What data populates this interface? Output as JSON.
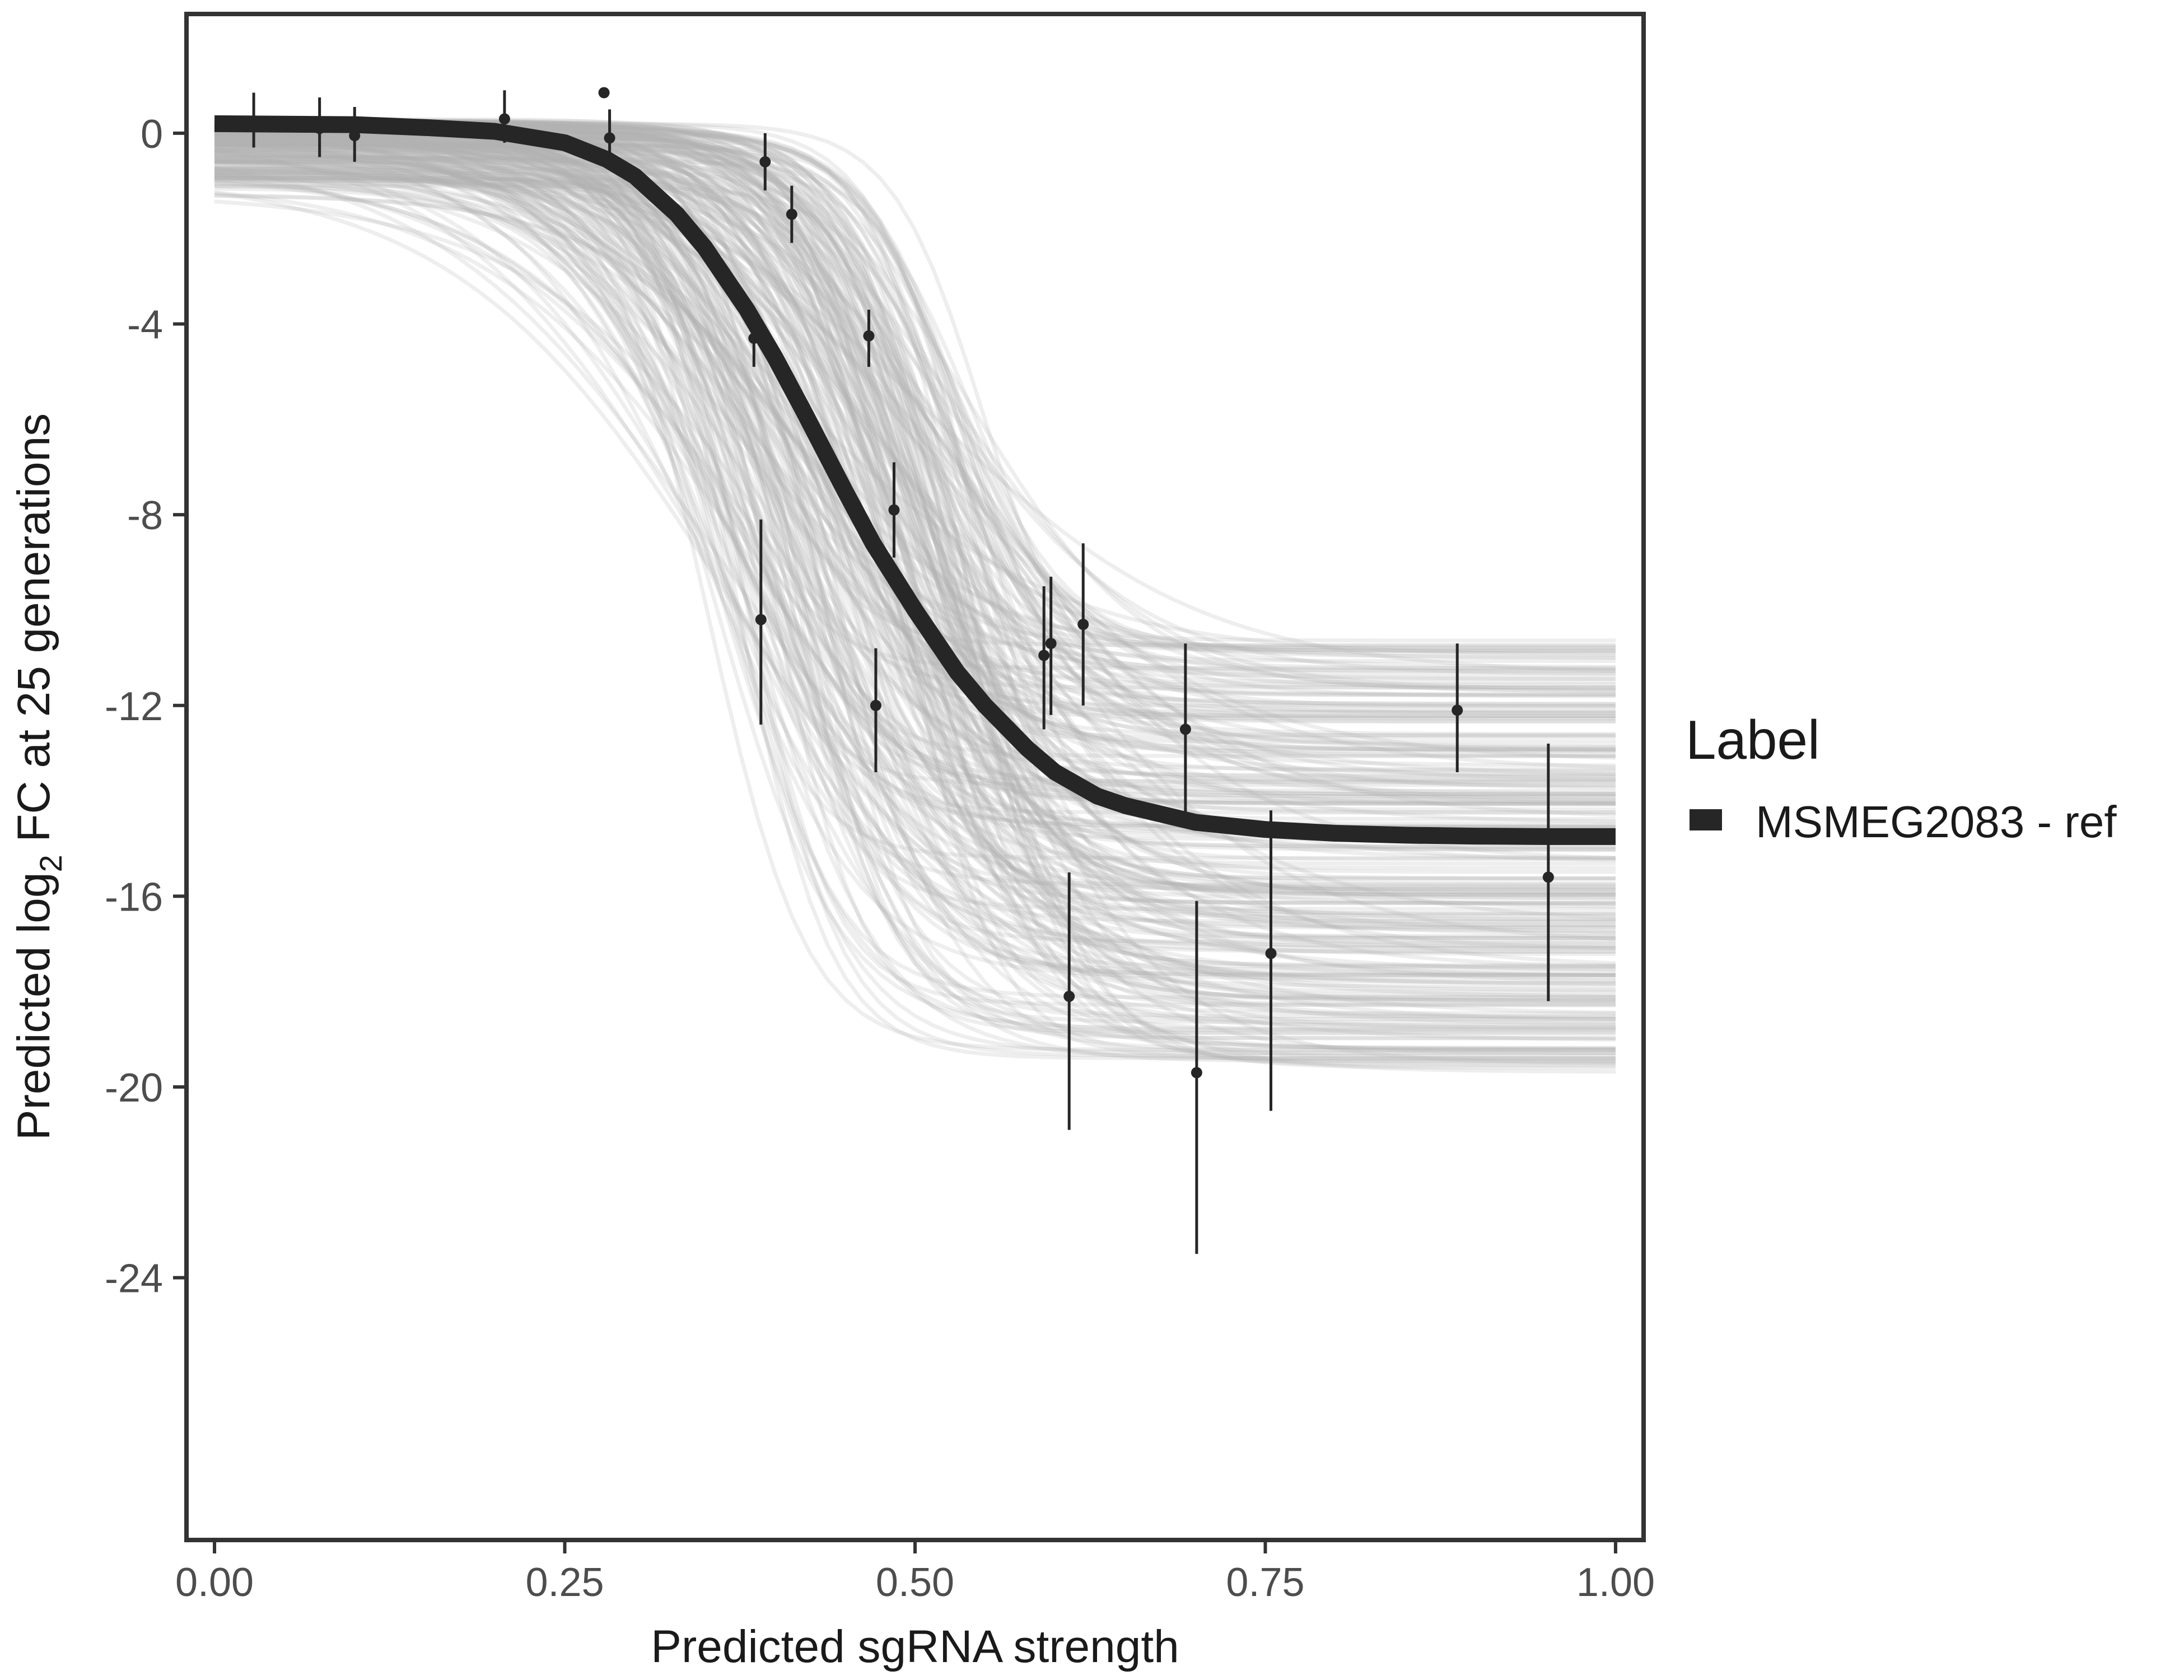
{
  "chart_data": {
    "type": "line",
    "title": "",
    "xlabel": "Predicted sgRNA strength",
    "ylabel_parts": [
      "Predicted  log",
      "2",
      " FC at 25 generations"
    ],
    "xlim": [
      -0.02,
      1.02
    ],
    "ylim": [
      -29.5,
      2.5
    ],
    "x_ticks": [
      {
        "value": 0.0,
        "label": "0.00"
      },
      {
        "value": 0.25,
        "label": "0.25"
      },
      {
        "value": 0.5,
        "label": "0.50"
      },
      {
        "value": 0.75,
        "label": "0.75"
      },
      {
        "value": 1.0,
        "label": "1.00"
      }
    ],
    "y_ticks": [
      {
        "value": 0,
        "label": "0"
      },
      {
        "value": -4,
        "label": "-4"
      },
      {
        "value": -8,
        "label": "-8"
      },
      {
        "value": -12,
        "label": "-12"
      },
      {
        "value": -16,
        "label": "-16"
      },
      {
        "value": -20,
        "label": "-20"
      },
      {
        "value": -24,
        "label": "-24"
      }
    ],
    "grid": false,
    "legend": {
      "title": "Label",
      "position": "right",
      "entries": [
        {
          "label": "MSMEG2083 - ref",
          "color": "#262626"
        }
      ]
    },
    "fit_curve": {
      "name": "MSMEG2083 - ref",
      "color": "#262626",
      "x": [
        0.0,
        0.05,
        0.1,
        0.15,
        0.2,
        0.25,
        0.28,
        0.3,
        0.33,
        0.35,
        0.38,
        0.4,
        0.42,
        0.45,
        0.47,
        0.5,
        0.53,
        0.55,
        0.58,
        0.6,
        0.63,
        0.65,
        0.7,
        0.75,
        0.8,
        0.85,
        0.9,
        0.95,
        1.0
      ],
      "y": [
        0.2,
        0.19,
        0.18,
        0.12,
        0.04,
        -0.2,
        -0.55,
        -0.9,
        -1.7,
        -2.4,
        -3.7,
        -4.7,
        -5.8,
        -7.5,
        -8.6,
        -10.0,
        -11.3,
        -12.0,
        -12.9,
        -13.4,
        -13.9,
        -14.1,
        -14.45,
        -14.6,
        -14.68,
        -14.72,
        -14.74,
        -14.75,
        -14.75
      ]
    },
    "posterior_draws": {
      "color": "#b3b3b3",
      "count": 260,
      "upper_asymptote_range": [
        -1.3,
        0.3
      ],
      "lower_asymptote_range": [
        -19.7,
        -10.5
      ],
      "midpoint_range": [
        0.34,
        0.56
      ],
      "slope_range": [
        10,
        32
      ]
    },
    "observations": {
      "color": "#262626",
      "points": [
        {
          "x": 0.028,
          "y": 0.2,
          "lo": -0.3,
          "hi": 0.85
        },
        {
          "x": 0.075,
          "y": 0.1,
          "lo": -0.5,
          "hi": 0.75
        },
        {
          "x": 0.1,
          "y": -0.05,
          "lo": -0.6,
          "hi": 0.55
        },
        {
          "x": 0.207,
          "y": 0.3,
          "lo": -0.2,
          "hi": 0.9
        },
        {
          "x": 0.278,
          "y": 0.85,
          "lo": 0.85,
          "hi": 0.85
        },
        {
          "x": 0.282,
          "y": -0.1,
          "lo": -0.6,
          "hi": 0.5
        },
        {
          "x": 0.385,
          "y": -4.3,
          "lo": -4.9,
          "hi": -3.7
        },
        {
          "x": 0.39,
          "y": -10.2,
          "lo": -12.4,
          "hi": -8.1
        },
        {
          "x": 0.393,
          "y": -0.6,
          "lo": -1.2,
          "hi": 0.0
        },
        {
          "x": 0.412,
          "y": -1.7,
          "lo": -2.3,
          "hi": -1.1
        },
        {
          "x": 0.467,
          "y": -4.25,
          "lo": -4.9,
          "hi": -3.7
        },
        {
          "x": 0.472,
          "y": -12.0,
          "lo": -13.4,
          "hi": -10.8
        },
        {
          "x": 0.485,
          "y": -7.9,
          "lo": -8.9,
          "hi": -6.9
        },
        {
          "x": 0.592,
          "y": -10.95,
          "lo": -12.5,
          "hi": -9.5
        },
        {
          "x": 0.597,
          "y": -10.7,
          "lo": -12.2,
          "hi": -9.3
        },
        {
          "x": 0.61,
          "y": -18.1,
          "lo": -20.9,
          "hi": -15.5
        },
        {
          "x": 0.62,
          "y": -10.3,
          "lo": -12.0,
          "hi": -8.6
        },
        {
          "x": 0.693,
          "y": -12.5,
          "lo": -14.3,
          "hi": -10.7
        },
        {
          "x": 0.701,
          "y": -19.7,
          "lo": -23.5,
          "hi": -16.1
        },
        {
          "x": 0.754,
          "y": -17.2,
          "lo": -20.5,
          "hi": -14.2
        },
        {
          "x": 0.887,
          "y": -12.1,
          "lo": -13.4,
          "hi": -10.7
        },
        {
          "x": 0.952,
          "y": -15.6,
          "lo": -18.2,
          "hi": -12.8
        }
      ]
    }
  }
}
